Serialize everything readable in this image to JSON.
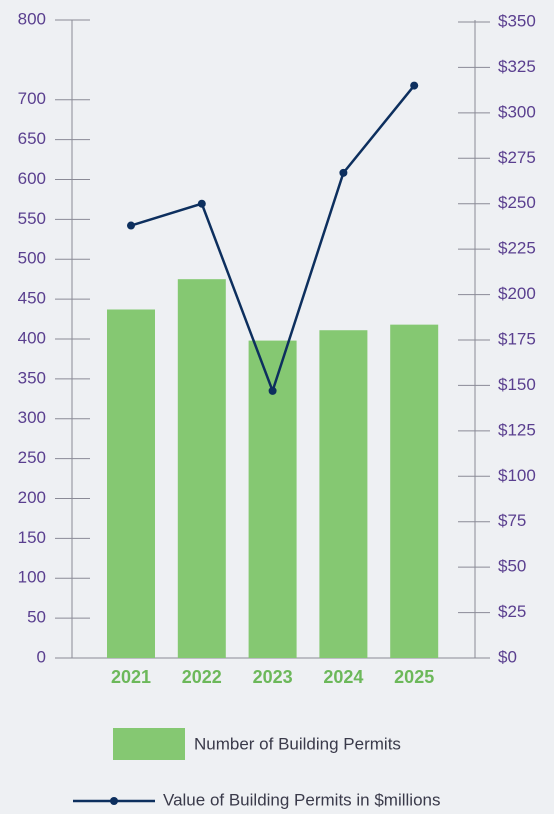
{
  "chart_data": {
    "type": "bar_line",
    "categories": [
      "2021",
      "2022",
      "2023",
      "2024",
      "2025"
    ],
    "series": [
      {
        "name": "Number of Building Permits",
        "type": "bar",
        "color": "#85c872",
        "values": [
          437,
          475,
          398,
          411,
          418
        ]
      },
      {
        "name": "Value of Building Permits in $millions",
        "type": "line",
        "axis": "y2",
        "color": "#0d2f5e",
        "values": [
          238,
          250,
          147,
          267,
          315
        ]
      }
    ],
    "ylim": [
      0,
      800
    ],
    "yticks": [
      0,
      50,
      100,
      150,
      200,
      250,
      300,
      350,
      400,
      450,
      500,
      550,
      600,
      650,
      700,
      800
    ],
    "y2lim": [
      0,
      350
    ],
    "y2ticks": [
      {
        "value": 0,
        "label": "$0"
      },
      {
        "value": 25,
        "label": "$25"
      },
      {
        "value": 50,
        "label": "$50"
      },
      {
        "value": 75,
        "label": "$75"
      },
      {
        "value": 100,
        "label": "$100"
      },
      {
        "value": 125,
        "label": "$125"
      },
      {
        "value": 150,
        "label": "$150"
      },
      {
        "value": 175,
        "label": "$175"
      },
      {
        "value": 200,
        "label": "$200"
      },
      {
        "value": 225,
        "label": "$225"
      },
      {
        "value": 250,
        "label": "$250"
      },
      {
        "value": 275,
        "label": "$275"
      },
      {
        "value": 300,
        "label": "$300"
      },
      {
        "value": 325,
        "label": "$325"
      },
      {
        "value": 350,
        "label": "$350"
      }
    ]
  }
}
